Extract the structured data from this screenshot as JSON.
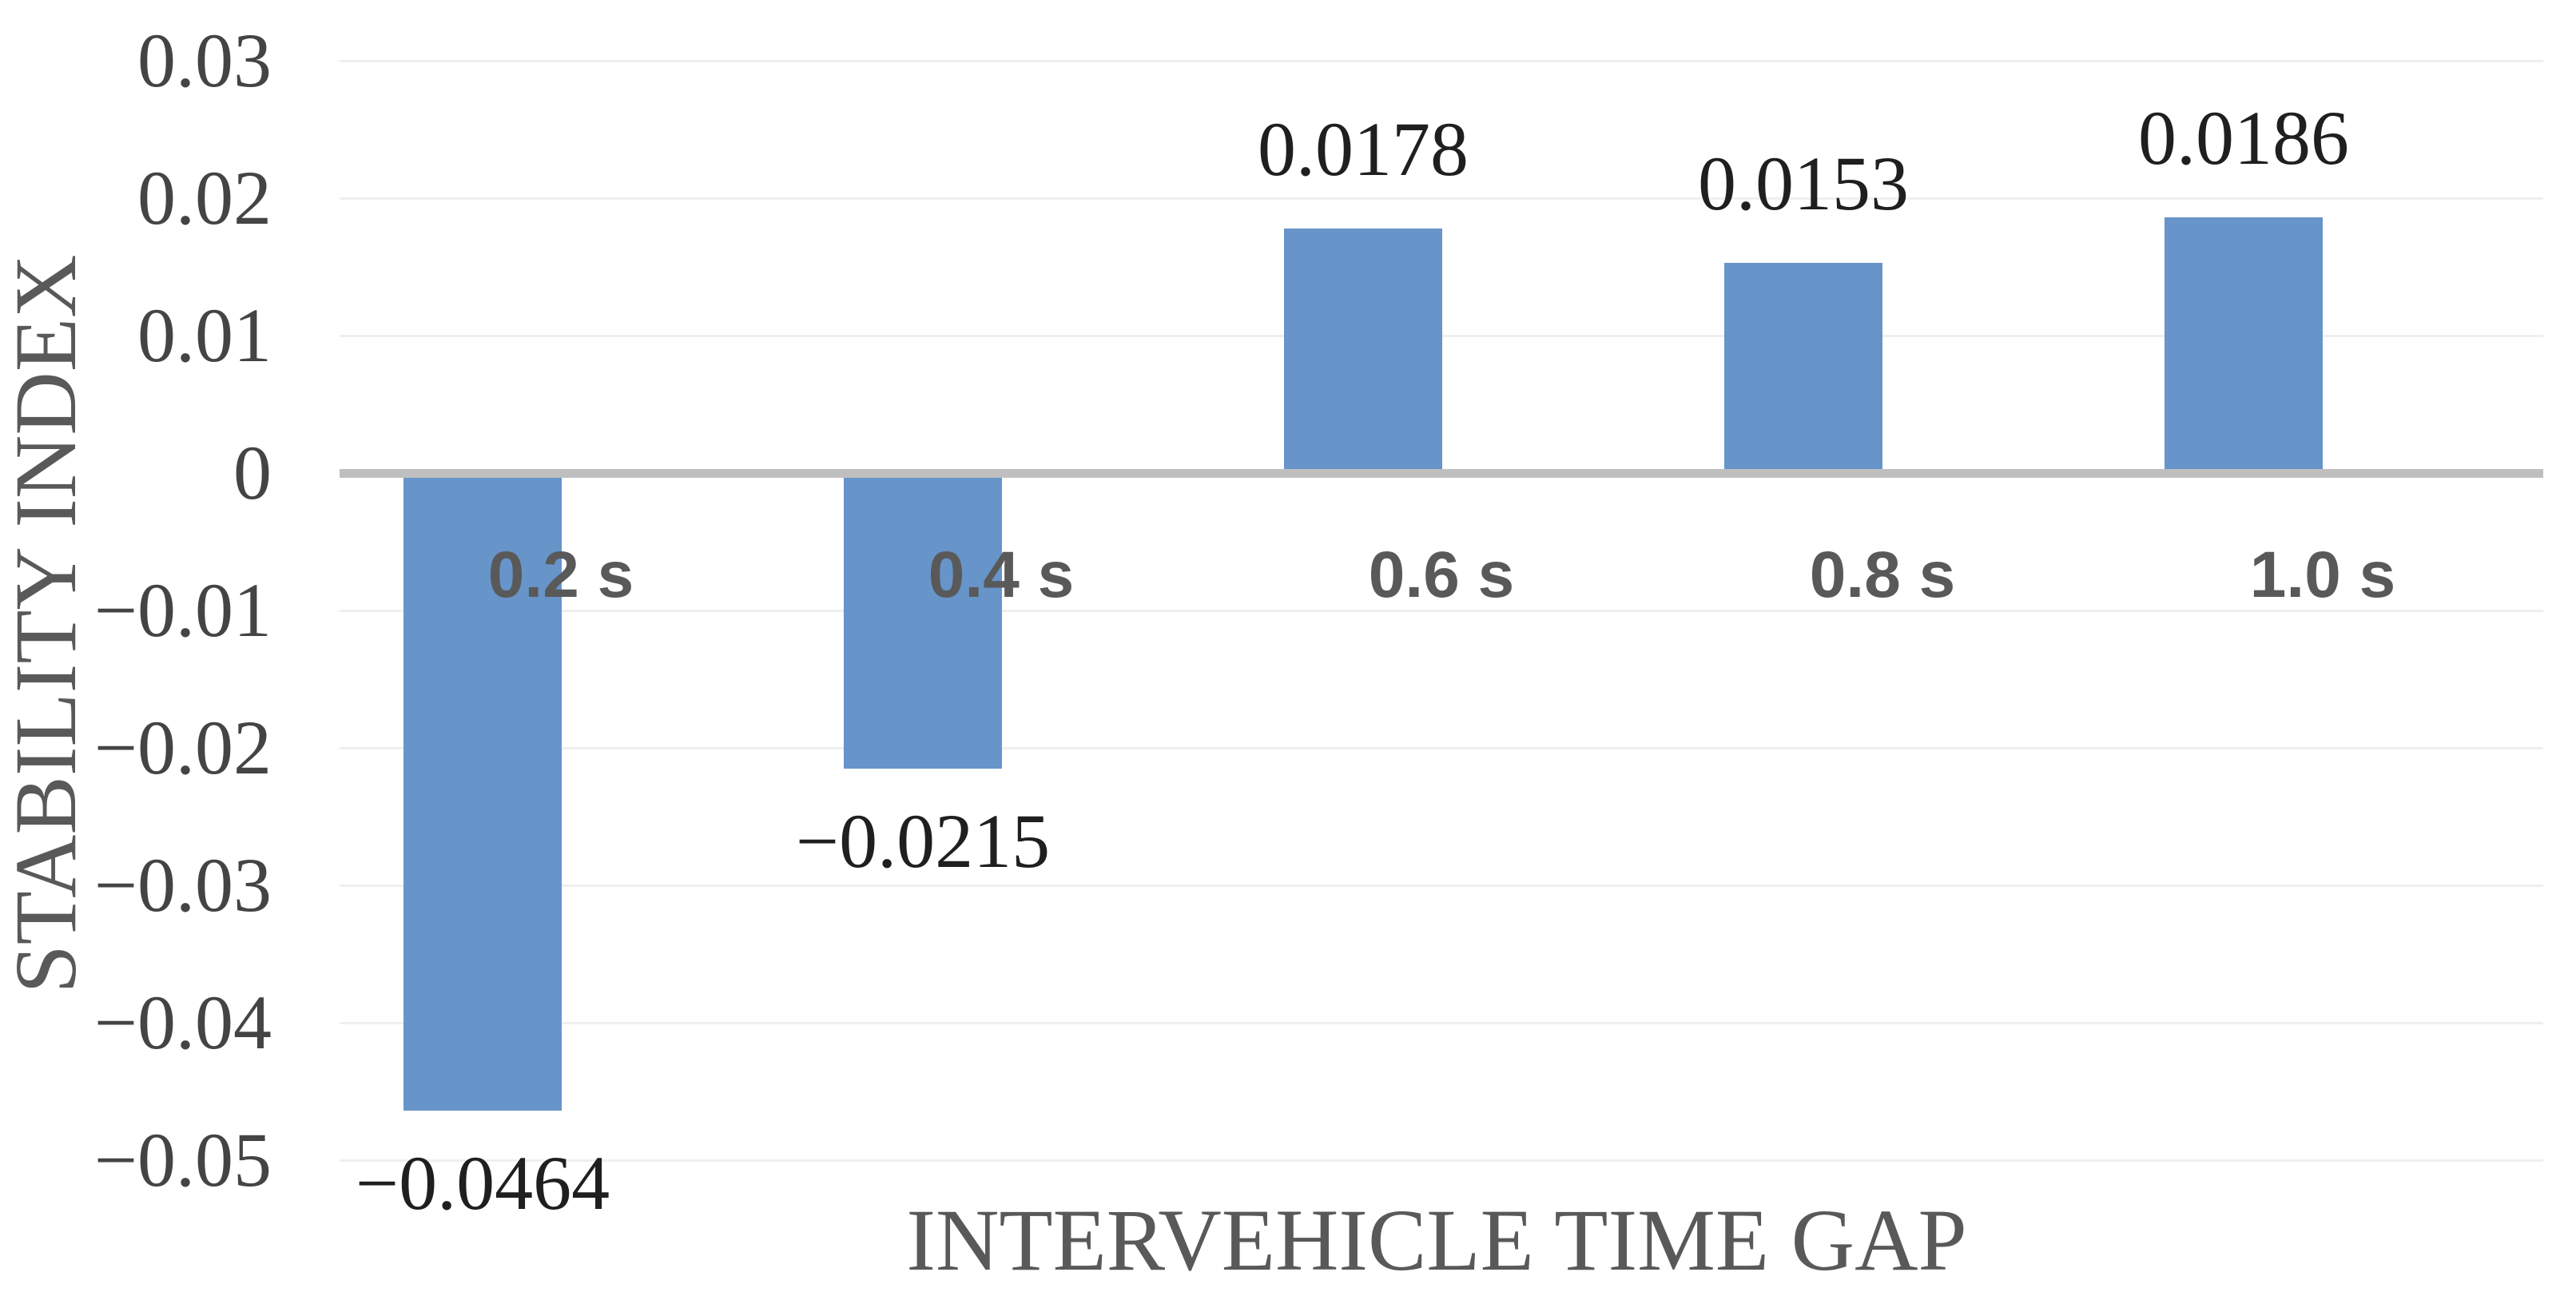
{
  "figure": {
    "background": "#FFFFFF"
  },
  "chart_data": {
    "type": "bar",
    "title": "",
    "xlabel": "INTERVEHICLE TIME GAP",
    "ylabel": "STABILITY INDEX",
    "categories": [
      "0.2 s",
      "0.4 s",
      "0.6 s",
      "0.8 s",
      "1.0 s"
    ],
    "values": [
      -0.0464,
      -0.0215,
      0.0178,
      0.0153,
      0.0186
    ],
    "data_labels": [
      "−0.0464",
      "−0.0215",
      "0.0178",
      "0.0153",
      "0.0186"
    ],
    "ylim": [
      -0.05,
      0.03
    ],
    "ytick_step": 0.01,
    "yticks": [
      0.03,
      0.02,
      0.01,
      0,
      -0.01,
      -0.02,
      -0.03,
      -0.04,
      -0.05
    ],
    "ytick_labels": [
      "0.03",
      "0.02",
      "0.01",
      "0",
      "−0.01",
      "−0.02",
      "−0.03",
      "−0.04",
      "−0.05"
    ],
    "grid": true,
    "legend": false,
    "bar_color": "#6794C9",
    "zero_line_color": "#BFBFBF",
    "gridline_color": "#EFEFEF",
    "tick_label_color": "#444444",
    "data_label_color": "#1F1F1F",
    "category_label_color": "#595959",
    "axis_title_color": "#595959"
  }
}
